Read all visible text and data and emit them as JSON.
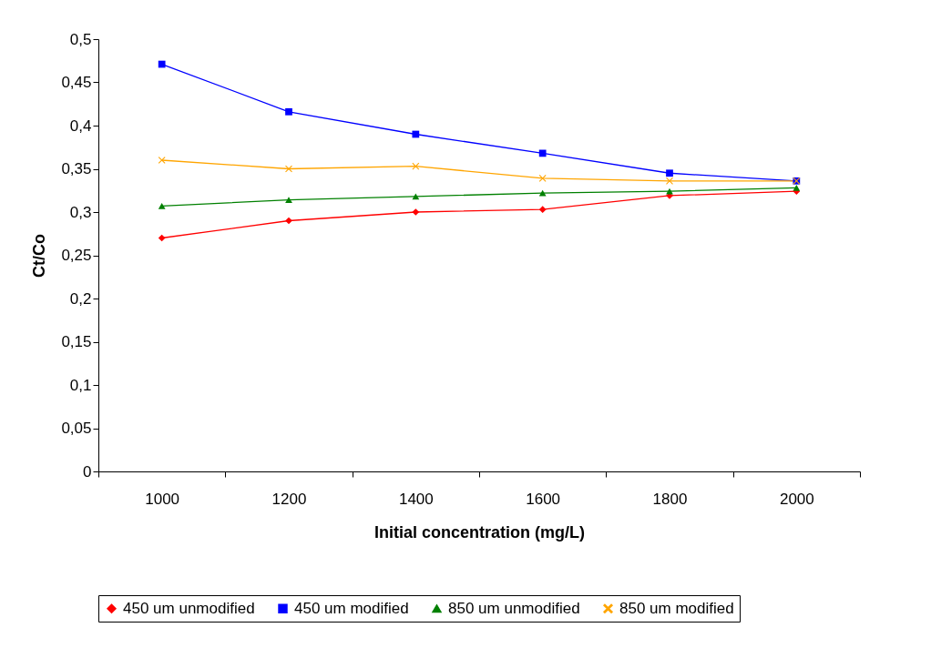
{
  "chart_data": {
    "type": "line",
    "xlabel": "Initial concentration (mg/L)",
    "ylabel": "Ct/Co",
    "categories": [
      "1000",
      "1200",
      "1400",
      "1600",
      "1800",
      "2000"
    ],
    "series": [
      {
        "name": "450 um unmodified",
        "color": "#ff0000",
        "marker": "diamond",
        "values": [
          0.27,
          0.29,
          0.3,
          0.303,
          0.319,
          0.324
        ]
      },
      {
        "name": "450 um modified",
        "color": "#0000ff",
        "marker": "square",
        "values": [
          0.471,
          0.416,
          0.39,
          0.368,
          0.345,
          0.336
        ]
      },
      {
        "name": "850 um unmodified",
        "color": "#008000",
        "marker": "triangle",
        "values": [
          0.307,
          0.314,
          0.318,
          0.322,
          0.324,
          0.328
        ]
      },
      {
        "name": "850 um modified",
        "color": "#ffa500",
        "marker": "cross",
        "values": [
          0.36,
          0.35,
          0.353,
          0.339,
          0.336,
          0.336
        ]
      }
    ],
    "ylim": [
      0,
      0.5
    ],
    "yticks": [
      {
        "value": 0,
        "label": "0"
      },
      {
        "value": 0.05,
        "label": "0,05"
      },
      {
        "value": 0.1,
        "label": "0,1"
      },
      {
        "value": 0.15,
        "label": "0,15"
      },
      {
        "value": 0.2,
        "label": "0,2"
      },
      {
        "value": 0.25,
        "label": "0,25"
      },
      {
        "value": 0.3,
        "label": "0,3"
      },
      {
        "value": 0.35,
        "label": "0,35"
      },
      {
        "value": 0.4,
        "label": "0,4"
      },
      {
        "value": 0.45,
        "label": "0,45"
      },
      {
        "value": 0.5,
        "label": "0,5"
      }
    ],
    "grid": false,
    "legend": "bottom"
  }
}
